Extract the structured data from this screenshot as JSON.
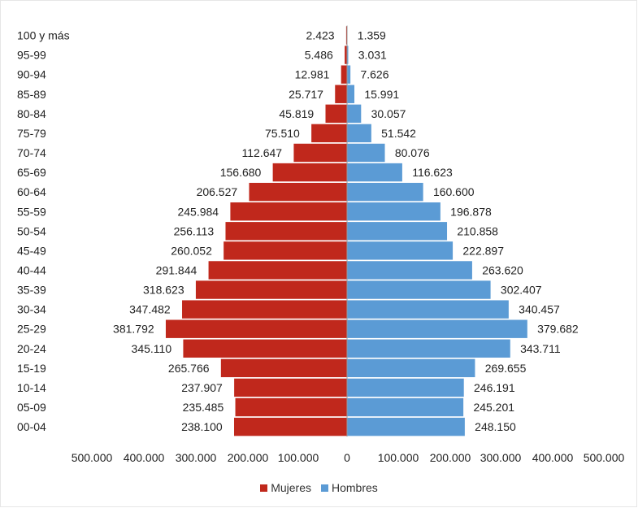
{
  "chart_data": {
    "type": "bar",
    "orientation": "horizontal-pyramid",
    "categories": [
      "00-04",
      "05-09",
      "10-14",
      "15-19",
      "20-24",
      "25-29",
      "30-34",
      "35-39",
      "40-44",
      "45-49",
      "50-54",
      "55-59",
      "60-64",
      "65-69",
      "70-74",
      "75-79",
      "80-84",
      "85-89",
      "90-94",
      "95-99",
      "100 y más"
    ],
    "series": [
      {
        "name": "Mujeres",
        "color": "#C0281C",
        "values": [
          238100,
          235485,
          237907,
          265766,
          345110,
          381792,
          347482,
          318623,
          291844,
          260052,
          256113,
          245984,
          206527,
          156680,
          112647,
          75510,
          45819,
          25717,
          12981,
          5486,
          2423
        ],
        "labels": [
          "238.100",
          "235.485",
          "237.907",
          "265.766",
          "345.110",
          "381.792",
          "347.482",
          "318.623",
          "291.844",
          "260.052",
          "256.113",
          "245.984",
          "206.527",
          "156.680",
          "112.647",
          "75.510",
          "45.819",
          "25.717",
          "12.981",
          "5.486",
          "2.423"
        ]
      },
      {
        "name": "Hombres",
        "color": "#5B9BD5",
        "values": [
          248150,
          245201,
          246191,
          269655,
          343711,
          379682,
          340457,
          302407,
          263620,
          222897,
          210858,
          196878,
          160600,
          116623,
          80076,
          51542,
          30057,
          15991,
          7626,
          3031,
          1359
        ],
        "labels": [
          "248.150",
          "245.201",
          "246.191",
          "269.655",
          "343.711",
          "379.682",
          "340.457",
          "302.407",
          "263.620",
          "222.897",
          "210.858",
          "196.878",
          "160.600",
          "116.623",
          "80.076",
          "51.542",
          "30.057",
          "15.991",
          "7.626",
          "3.031",
          "1.359"
        ]
      }
    ],
    "xlim": [
      -500000,
      500000
    ],
    "x_tick_labels": [
      "500.000",
      "400.000",
      "300.000",
      "200.000",
      "100.000",
      "0",
      "100.000",
      "200.000",
      "300.000",
      "400.000",
      "500.000"
    ],
    "x_tick_values": [
      -500000,
      -400000,
      -300000,
      -200000,
      -100000,
      0,
      100000,
      200000,
      300000,
      400000,
      500000
    ],
    "title": "",
    "xlabel": "",
    "ylabel": "",
    "grid": false,
    "legend_position": "bottom"
  }
}
